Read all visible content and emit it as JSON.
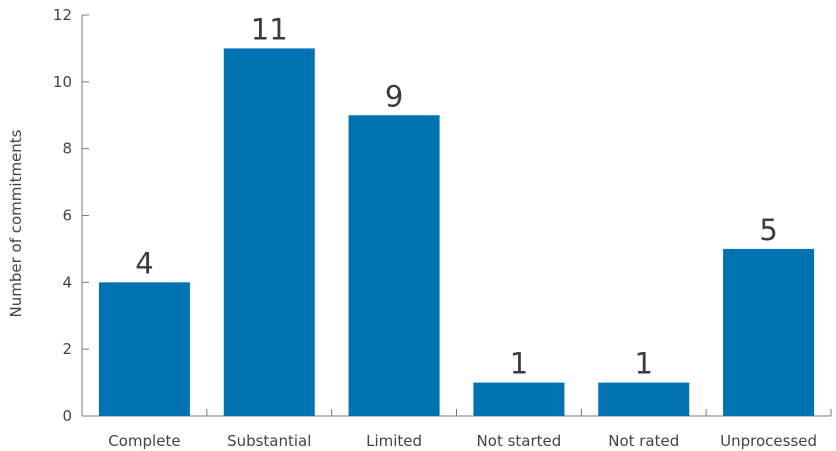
{
  "chart_data": {
    "type": "bar",
    "title": "",
    "xlabel": "",
    "ylabel": "Number of commitments",
    "categories": [
      "Complete",
      "Substantial",
      "Limited",
      "Not started",
      "Not rated",
      "Unprocessed"
    ],
    "values": [
      4,
      11,
      9,
      1,
      1,
      5
    ],
    "value_labels": [
      "4",
      "11",
      "9",
      "1",
      "1",
      "5"
    ],
    "ylim": [
      0,
      12
    ],
    "yticks": [
      0,
      2,
      4,
      6,
      8,
      10,
      12
    ],
    "ytick_labels": [
      "0",
      "2",
      "4",
      "6",
      "8",
      "10",
      "12"
    ],
    "grid": false,
    "legend": "none",
    "colors": {
      "bar": "#0072B2"
    }
  }
}
